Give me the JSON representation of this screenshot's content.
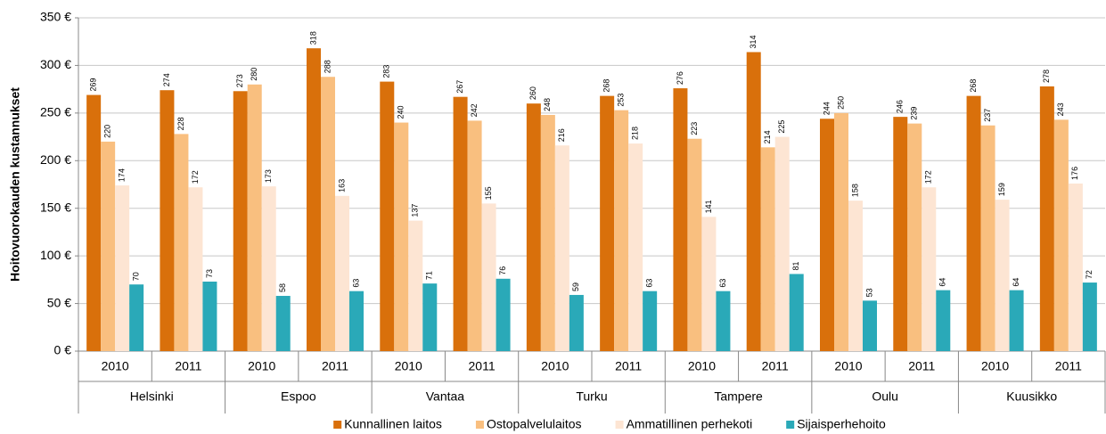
{
  "chart_data": {
    "type": "bar",
    "y_label": "Hoitovuorokauden kustannukset",
    "categories": [
      "2010",
      "2011",
      "2010",
      "2011",
      "2010",
      "2011",
      "2010",
      "2011",
      "2010",
      "2011",
      "2010",
      "2011",
      "2010",
      "2011"
    ],
    "groups": [
      "Helsinki",
      "Espoo",
      "Vantaa",
      "Turku",
      "Tampere",
      "Oulu",
      "Kuusikko"
    ],
    "series": [
      {
        "name": "Kunnallinen laitos",
        "color": "#d9700b",
        "values": [
          269,
          274,
          273,
          318,
          283,
          267,
          260,
          268,
          276,
          314,
          244,
          246,
          268,
          278
        ]
      },
      {
        "name": "Ostopalvelulaitos",
        "color": "#f9bf7f",
        "values": [
          220,
          228,
          280,
          288,
          240,
          242,
          248,
          253,
          223,
          214,
          250,
          239,
          237,
          243
        ]
      },
      {
        "name": "Ammatillinen perhekoti",
        "color": "#fde5d3",
        "values": [
          174,
          172,
          173,
          163,
          137,
          155,
          216,
          218,
          141,
          225,
          158,
          172,
          159,
          176
        ]
      },
      {
        "name": "Sijaisperhehoito",
        "color": "#2aa9b8",
        "values": [
          70,
          73,
          58,
          63,
          71,
          76,
          59,
          63,
          63,
          81,
          53,
          64,
          64,
          72
        ]
      }
    ],
    "ylim": [
      0,
      350
    ],
    "yticks": [
      {
        "value": 0,
        "label": "0 €"
      },
      {
        "value": 50,
        "label": "50 €"
      },
      {
        "value": 100,
        "label": "100 €"
      },
      {
        "value": 150,
        "label": "150 €"
      },
      {
        "value": 200,
        "label": "200 €"
      },
      {
        "value": 250,
        "label": "250 €"
      },
      {
        "value": 300,
        "label": "300 €"
      },
      {
        "value": 350,
        "label": "350 €"
      }
    ],
    "grid": true,
    "legend": "bottom"
  }
}
